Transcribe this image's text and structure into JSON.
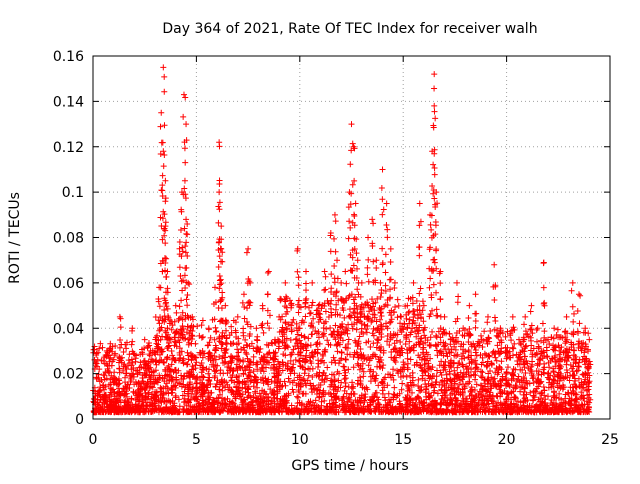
{
  "chart_data": {
    "type": "scatter",
    "title": "Day 364 of 2021, Rate Of TEC Index for receiver walh",
    "xlabel": "GPS time / hours",
    "ylabel": "ROTI / TECUs",
    "xlim": [
      0,
      25
    ],
    "ylim": [
      0,
      0.16
    ],
    "xticks": [
      0,
      5,
      10,
      15,
      20,
      25
    ],
    "xtick_labels": [
      "0",
      "5",
      "10",
      "15",
      "20",
      "25"
    ],
    "yticks": [
      0,
      0.02,
      0.04,
      0.06,
      0.08,
      0.1,
      0.12,
      0.14,
      0.16
    ],
    "ytick_labels": [
      "0",
      "0.02",
      "0.04",
      "0.06",
      "0.08",
      "0.1",
      "0.12",
      "0.14",
      "0.16"
    ],
    "grid": true,
    "marker": "+",
    "series": [
      {
        "name": "ROTI",
        "color": "#ff0000",
        "note": "dense band of points 0.003-0.045 TECU/s across 0-24 h; representative sampled points listed",
        "x": [
          0.1,
          0.3,
          0.5,
          0.8,
          1.0,
          1.3,
          1.6,
          1.9,
          2.2,
          2.5,
          2.8,
          3.0,
          3.2,
          3.3,
          3.4,
          3.4,
          3.5,
          3.5,
          3.6,
          3.6,
          3.8,
          4.0,
          4.2,
          4.3,
          4.4,
          4.5,
          4.5,
          4.6,
          4.6,
          4.8,
          5.0,
          5.3,
          5.6,
          5.9,
          6.1,
          6.1,
          6.2,
          6.2,
          6.4,
          6.7,
          7.0,
          7.3,
          7.5,
          7.6,
          7.9,
          8.2,
          8.5,
          8.8,
          9.0,
          9.3,
          9.6,
          9.9,
          10.0,
          10.3,
          10.6,
          10.9,
          11.2,
          11.5,
          11.7,
          11.8,
          12.0,
          12.2,
          12.4,
          12.5,
          12.6,
          12.7,
          12.8,
          13.0,
          13.3,
          13.5,
          13.7,
          13.9,
          14.0,
          14.2,
          14.4,
          14.6,
          14.9,
          15.2,
          15.5,
          15.8,
          16.0,
          16.3,
          16.4,
          16.5,
          16.5,
          16.6,
          16.8,
          17.0,
          17.3,
          17.6,
          17.9,
          18.2,
          18.5,
          18.8,
          19.1,
          19.4,
          19.7,
          20.0,
          20.3,
          20.6,
          20.9,
          21.2,
          21.5,
          21.8,
          22.0,
          22.3,
          22.6,
          22.9,
          23.2,
          23.5,
          23.8,
          24.0
        ],
        "y": [
          0.012,
          0.022,
          0.015,
          0.03,
          0.018,
          0.045,
          0.02,
          0.04,
          0.016,
          0.035,
          0.025,
          0.03,
          0.058,
          0.135,
          0.155,
          0.118,
          0.105,
          0.085,
          0.04,
          0.065,
          0.03,
          0.05,
          0.078,
          0.1,
          0.143,
          0.13,
          0.088,
          0.06,
          0.035,
          0.045,
          0.025,
          0.03,
          0.04,
          0.058,
          0.122,
          0.1,
          0.085,
          0.075,
          0.05,
          0.038,
          0.045,
          0.055,
          0.075,
          0.06,
          0.04,
          0.05,
          0.065,
          0.035,
          0.045,
          0.06,
          0.05,
          0.075,
          0.04,
          0.065,
          0.06,
          0.05,
          0.065,
          0.082,
          0.09,
          0.07,
          0.06,
          0.065,
          0.1,
          0.13,
          0.12,
          0.095,
          0.07,
          0.06,
          0.08,
          0.088,
          0.07,
          0.06,
          0.11,
          0.095,
          0.075,
          0.06,
          0.045,
          0.05,
          0.06,
          0.095,
          0.05,
          0.09,
          0.118,
          0.152,
          0.138,
          0.1,
          0.065,
          0.045,
          0.035,
          0.06,
          0.04,
          0.05,
          0.055,
          0.035,
          0.045,
          0.068,
          0.04,
          0.03,
          0.045,
          0.035,
          0.045,
          0.05,
          0.04,
          0.069,
          0.035,
          0.04,
          0.03,
          0.045,
          0.06,
          0.055,
          0.04,
          0.035
        ]
      }
    ]
  }
}
